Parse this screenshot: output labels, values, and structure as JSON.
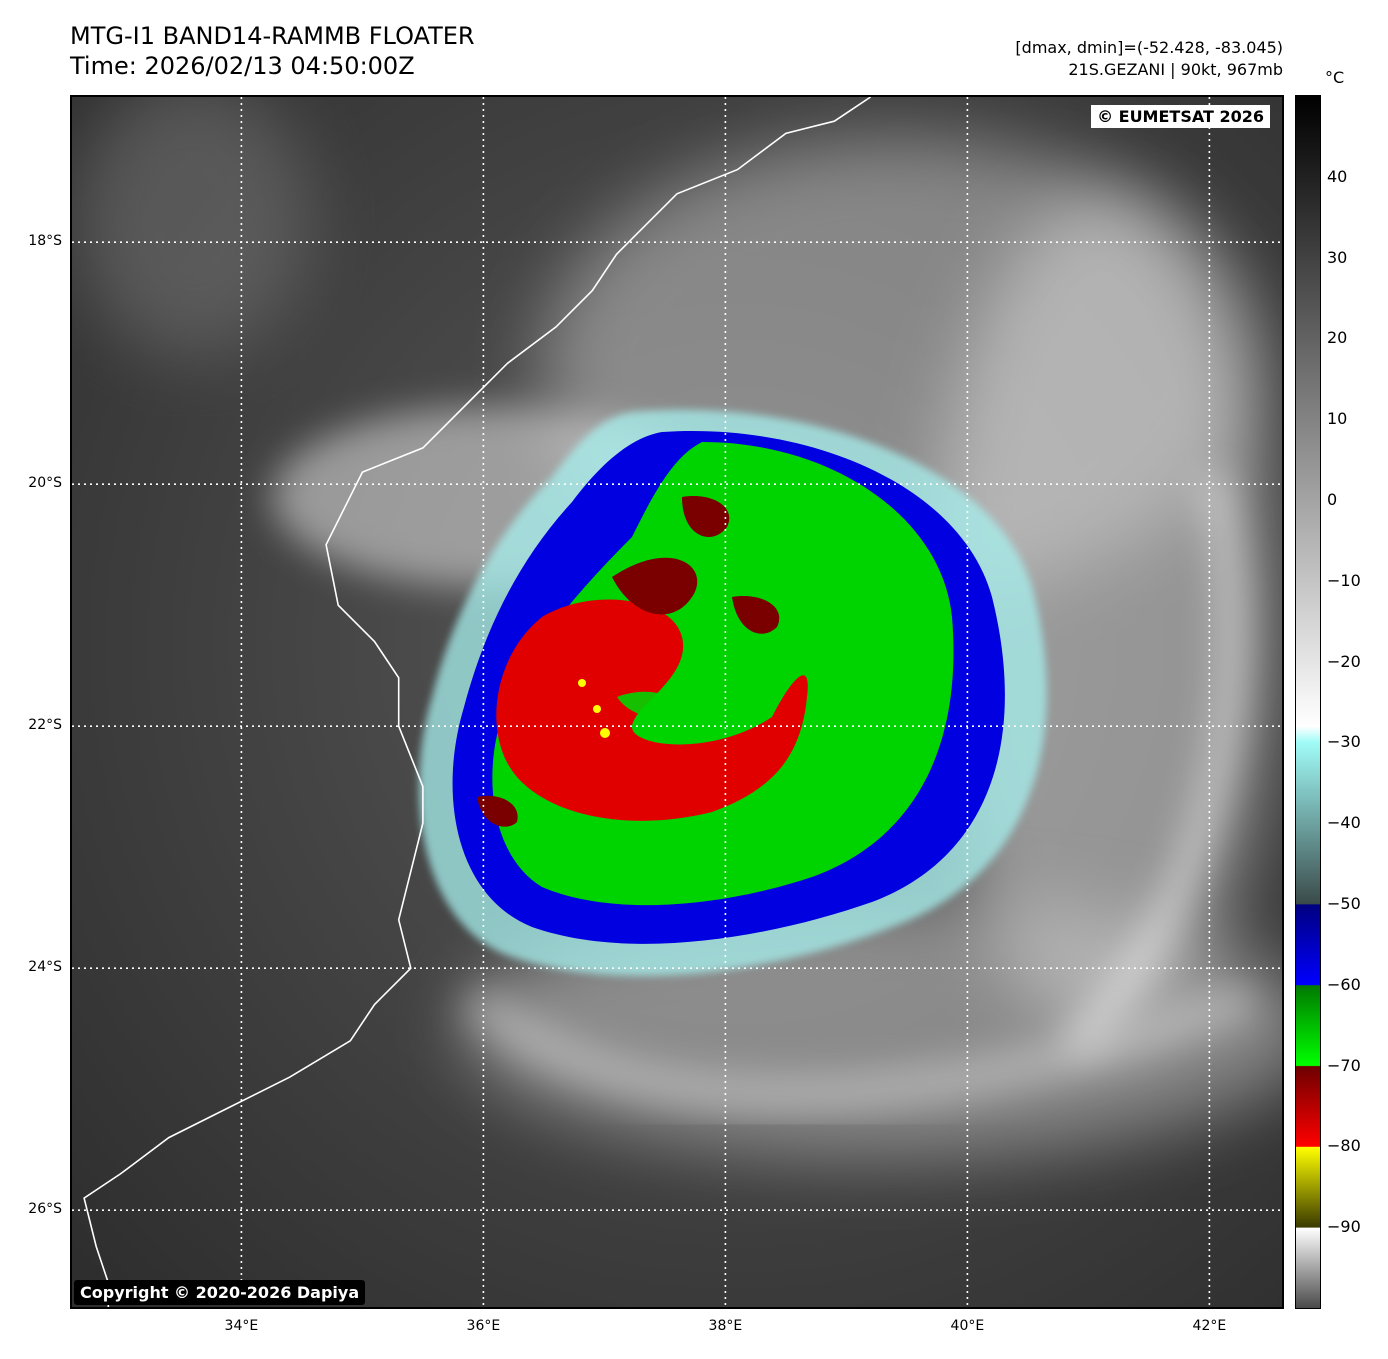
{
  "header": {
    "title_line1": "MTG-I1 BAND14-RAMMB FLOATER",
    "title_line2": "Time: 2026/02/13 04:50:00Z",
    "stats": "[dmax, dmin]=(-52.428, -83.045)",
    "storm": "21S.GEZANI | 90kt, 967mb"
  },
  "map": {
    "credit_top": "© EUMETSAT 2026",
    "credit_bottom": "Copyright © 2020-2026 Dapiya",
    "lon_min": 32.6,
    "lon_max": 42.6,
    "lat_top": -16.8,
    "lat_bottom": -26.8,
    "lat_grid": [
      {
        "value": -18,
        "label": "18°S"
      },
      {
        "value": -20,
        "label": "20°S"
      },
      {
        "value": -22,
        "label": "22°S"
      },
      {
        "value": -24,
        "label": "24°S"
      },
      {
        "value": -26,
        "label": "26°S"
      }
    ],
    "lon_grid": [
      {
        "value": 34,
        "label": "34°E"
      },
      {
        "value": 36,
        "label": "36°E"
      },
      {
        "value": 38,
        "label": "38°E"
      },
      {
        "value": 40,
        "label": "40°E"
      },
      {
        "value": 42,
        "label": "42°E"
      }
    ],
    "storm_center": {
      "lon": 37.4,
      "lat": -21.8
    },
    "coastline": [
      [
        39.2,
        -16.8
      ],
      [
        38.9,
        -17.0
      ],
      [
        38.5,
        -17.1
      ],
      [
        38.1,
        -17.4
      ],
      [
        37.6,
        -17.6
      ],
      [
        37.1,
        -18.1
      ],
      [
        36.9,
        -18.4
      ],
      [
        36.6,
        -18.7
      ],
      [
        36.2,
        -19.0
      ],
      [
        35.9,
        -19.3
      ],
      [
        35.5,
        -19.7
      ],
      [
        35.0,
        -19.9
      ],
      [
        34.9,
        -20.1
      ],
      [
        34.7,
        -20.5
      ],
      [
        34.8,
        -21.0
      ],
      [
        35.1,
        -21.3
      ],
      [
        35.3,
        -21.6
      ],
      [
        35.3,
        -22.0
      ],
      [
        35.5,
        -22.5
      ],
      [
        35.5,
        -22.8
      ],
      [
        35.4,
        -23.2
      ],
      [
        35.3,
        -23.6
      ],
      [
        35.4,
        -24.0
      ],
      [
        35.1,
        -24.3
      ],
      [
        34.9,
        -24.6
      ],
      [
        34.4,
        -24.9
      ],
      [
        33.8,
        -25.2
      ],
      [
        33.4,
        -25.4
      ],
      [
        33.0,
        -25.7
      ],
      [
        32.7,
        -25.9
      ],
      [
        32.8,
        -26.3
      ],
      [
        32.9,
        -26.6
      ],
      [
        32.9,
        -26.8
      ]
    ]
  },
  "colorbar": {
    "unit": "°C",
    "max": 50,
    "min": -100,
    "ticks": [
      40,
      30,
      20,
      10,
      0,
      -10,
      -20,
      -30,
      -40,
      -50,
      -60,
      -70,
      -80,
      -90
    ],
    "tick_labels": [
      "40",
      "30",
      "20",
      "10",
      "0",
      "−10",
      "−20",
      "−30",
      "−40",
      "−50",
      "−60",
      "−70",
      "−80",
      "−90"
    ],
    "stops": [
      {
        "t": 50,
        "color": "#000000"
      },
      {
        "t": -28,
        "color": "#ffffff"
      },
      {
        "t": -30,
        "color": "#a0fbf7"
      },
      {
        "t": -50,
        "color": "#3a4a4a"
      },
      {
        "t": -50.1,
        "color": "#000080"
      },
      {
        "t": -60,
        "color": "#0000ff"
      },
      {
        "t": -60.1,
        "color": "#007a00"
      },
      {
        "t": -70,
        "color": "#00ff00"
      },
      {
        "t": -70.1,
        "color": "#6e0000"
      },
      {
        "t": -80,
        "color": "#ff0000"
      },
      {
        "t": -80.1,
        "color": "#ffff00"
      },
      {
        "t": -90,
        "color": "#3a3a00"
      },
      {
        "t": -90.1,
        "color": "#ffffff"
      },
      {
        "t": -100,
        "color": "#4a4a4a"
      }
    ]
  }
}
